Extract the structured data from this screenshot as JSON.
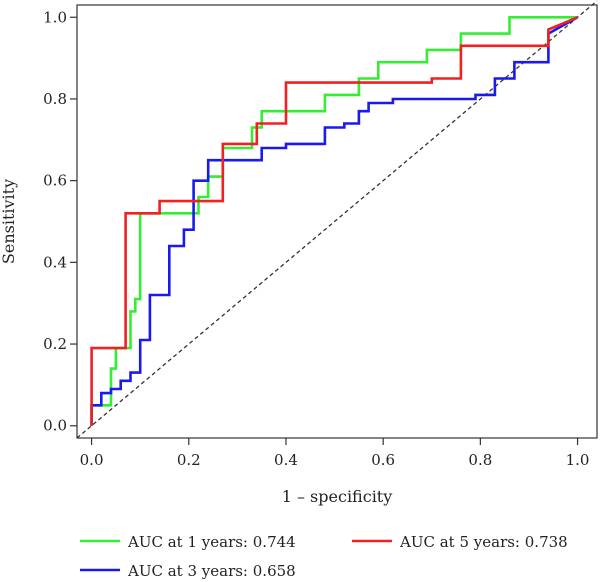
{
  "chart_data": {
    "type": "line",
    "xlabel": "1 – specificity",
    "ylabel": "Sensitivity",
    "xlim": [
      -0.03,
      1.04
    ],
    "ylim": [
      -0.03,
      1.03
    ],
    "xticks": [
      0.0,
      0.2,
      0.4,
      0.6,
      0.8,
      1.0
    ],
    "yticks": [
      0.0,
      0.2,
      0.4,
      0.6,
      0.8,
      1.0
    ],
    "tick_labels_x": [
      "0.0",
      "0.2",
      "0.4",
      "0.6",
      "0.8",
      "1.0"
    ],
    "tick_labels_y": [
      "0.0",
      "0.2",
      "0.4",
      "0.6",
      "0.8",
      "1.0"
    ],
    "grid": false,
    "legend_position": "bottom",
    "reference_line": {
      "x": [
        0,
        1
      ],
      "y": [
        0,
        1
      ],
      "style": "dashed",
      "color": "#333333"
    },
    "series": [
      {
        "name": "AUC at 1 years: 0.744",
        "color": "#33ee33",
        "x": [
          0.0,
          0.0,
          0.02,
          0.02,
          0.04,
          0.04,
          0.05,
          0.05,
          0.08,
          0.08,
          0.09,
          0.09,
          0.1,
          0.1,
          0.22,
          0.22,
          0.24,
          0.24,
          0.27,
          0.27,
          0.33,
          0.33,
          0.35,
          0.35,
          0.48,
          0.48,
          0.55,
          0.55,
          0.59,
          0.59,
          0.69,
          0.69,
          0.76,
          0.76,
          0.86,
          0.86,
          1.0
        ],
        "y": [
          0.0,
          0.05,
          0.05,
          0.05,
          0.05,
          0.14,
          0.14,
          0.19,
          0.19,
          0.28,
          0.28,
          0.31,
          0.31,
          0.52,
          0.52,
          0.56,
          0.56,
          0.61,
          0.61,
          0.68,
          0.68,
          0.73,
          0.73,
          0.77,
          0.77,
          0.81,
          0.81,
          0.85,
          0.85,
          0.89,
          0.89,
          0.92,
          0.92,
          0.96,
          0.96,
          1.0,
          1.0
        ]
      },
      {
        "name": "AUC at 3 years: 0.658",
        "color": "#1a1aee",
        "x": [
          0.0,
          0.0,
          0.02,
          0.02,
          0.04,
          0.04,
          0.06,
          0.06,
          0.08,
          0.08,
          0.1,
          0.1,
          0.12,
          0.12,
          0.16,
          0.16,
          0.19,
          0.19,
          0.21,
          0.21,
          0.24,
          0.24,
          0.26,
          0.26,
          0.35,
          0.35,
          0.4,
          0.4,
          0.48,
          0.48,
          0.52,
          0.52,
          0.55,
          0.55,
          0.57,
          0.57,
          0.62,
          0.62,
          0.79,
          0.79,
          0.83,
          0.83,
          0.87,
          0.87,
          0.94,
          0.94,
          1.0
        ],
        "y": [
          0.0,
          0.05,
          0.05,
          0.08,
          0.08,
          0.09,
          0.09,
          0.11,
          0.11,
          0.13,
          0.13,
          0.21,
          0.21,
          0.32,
          0.32,
          0.44,
          0.44,
          0.48,
          0.48,
          0.6,
          0.6,
          0.65,
          0.65,
          0.65,
          0.65,
          0.68,
          0.68,
          0.69,
          0.69,
          0.73,
          0.73,
          0.74,
          0.74,
          0.77,
          0.77,
          0.79,
          0.79,
          0.8,
          0.8,
          0.81,
          0.81,
          0.85,
          0.85,
          0.89,
          0.89,
          0.96,
          1.0
        ]
      },
      {
        "name": "AUC at 5 years: 0.738",
        "color": "#ee2222",
        "x": [
          0.0,
          0.0,
          0.05,
          0.05,
          0.07,
          0.07,
          0.08,
          0.08,
          0.14,
          0.14,
          0.27,
          0.27,
          0.34,
          0.34,
          0.4,
          0.4,
          0.7,
          0.7,
          0.76,
          0.76,
          0.94,
          0.94,
          1.0
        ],
        "y": [
          0.0,
          0.19,
          0.19,
          0.19,
          0.19,
          0.52,
          0.52,
          0.52,
          0.52,
          0.55,
          0.55,
          0.69,
          0.69,
          0.74,
          0.74,
          0.84,
          0.84,
          0.85,
          0.85,
          0.93,
          0.93,
          0.97,
          1.0
        ]
      }
    ]
  }
}
